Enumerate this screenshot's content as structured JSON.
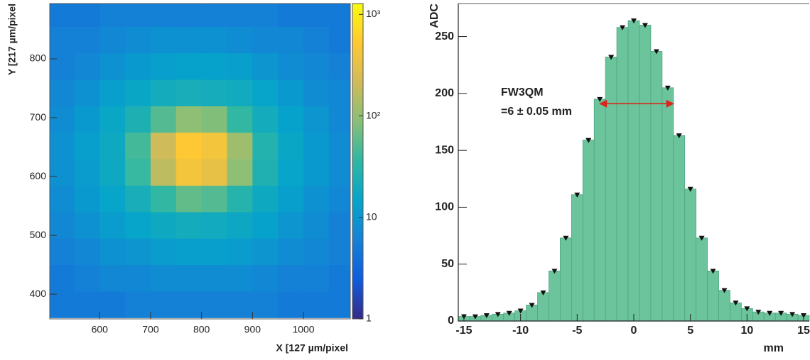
{
  "chart_data": [
    {
      "type": "heatmap",
      "xlabel": "X [127 µm/pixel",
      "ylabel": "Y [217 µm/pixel",
      "xbins": [
        500,
        550,
        600,
        650,
        700,
        750,
        800,
        850,
        900,
        950,
        1000,
        1050,
        1100
      ],
      "ybins": [
        360,
        405,
        450,
        495,
        540,
        585,
        630,
        675,
        720,
        765,
        810,
        855,
        900
      ],
      "z": [
        [
          5,
          5,
          5,
          6,
          6,
          6,
          6,
          6,
          6,
          5,
          5,
          5
        ],
        [
          5,
          6,
          7,
          7,
          8,
          8,
          8,
          8,
          7,
          6,
          6,
          5
        ],
        [
          6,
          7,
          9,
          10,
          12,
          13,
          13,
          12,
          10,
          8,
          7,
          6
        ],
        [
          7,
          9,
          12,
          15,
          18,
          20,
          19,
          17,
          14,
          10,
          8,
          6
        ],
        [
          8,
          11,
          15,
          22,
          37,
          60,
          52,
          30,
          18,
          13,
          9,
          7
        ],
        [
          9,
          12,
          18,
          39,
          170,
          412,
          329,
          95,
          26,
          15,
          11,
          8
        ],
        [
          9,
          13,
          18,
          44,
          210,
          517,
          412,
          115,
          28,
          16,
          11,
          8
        ],
        [
          8,
          11,
          16,
          25,
          52,
          96,
          82,
          37,
          20,
          14,
          10,
          7
        ],
        [
          7,
          9,
          13,
          16,
          20,
          22,
          21,
          19,
          15,
          11,
          8,
          7
        ],
        [
          6,
          7,
          9,
          11,
          13,
          14,
          14,
          13,
          10,
          8,
          7,
          6
        ],
        [
          6,
          6,
          7,
          8,
          9,
          9,
          9,
          8,
          7,
          7,
          6,
          5
        ],
        [
          5,
          5,
          6,
          6,
          6,
          6,
          6,
          6,
          6,
          5,
          5,
          5
        ]
      ],
      "xlim": [
        502,
        1092
      ],
      "ylim": [
        358,
        894
      ],
      "xticks": [
        600,
        700,
        800,
        900,
        1000
      ],
      "yticks": [
        400,
        500,
        600,
        700,
        800
      ],
      "zlim": [
        1,
        1280
      ],
      "zlog": true,
      "zticks": [
        1,
        10,
        {
          "value": 100,
          "label": "10²"
        },
        {
          "value": 1000,
          "label": "10³"
        }
      ],
      "colormap": [
        "#352a87",
        "#0f5cdd",
        "#1481d6",
        "#06a4ca",
        "#2eb7a4",
        "#87bf77",
        "#d1bb59",
        "#fec832",
        "#f9fb0e"
      ]
    },
    {
      "type": "histogram",
      "ylabel": "ADC",
      "xlabel": "mm",
      "bins": [
        -15.5,
        -14.5,
        -13.5,
        -12.5,
        -11.5,
        -10.5,
        -9.5,
        -8.5,
        -7.5,
        -6.5,
        -5.5,
        -4.5,
        -3.5,
        -2.5,
        -1.5,
        -0.5,
        0.5,
        1.5,
        2.5,
        3.5,
        4.5,
        5.5,
        6.5,
        7.5,
        8.5,
        9.5,
        10.5,
        11.5,
        12.5,
        13.5,
        14.5,
        15.5
      ],
      "values": [
        4,
        4,
        5,
        6,
        7,
        9,
        14,
        25,
        44,
        73,
        111,
        159,
        195,
        232,
        258,
        264,
        260,
        237,
        205,
        163,
        116,
        73,
        44,
        27,
        16,
        11,
        8,
        7,
        7,
        6,
        5
      ],
      "color": "#6cc49c",
      "marker_color": "#111111",
      "xlim": [
        -15.5,
        15.5
      ],
      "ylim": [
        0,
        279
      ],
      "xticks": [
        -15,
        -10,
        -5,
        0,
        5,
        10,
        15
      ],
      "yticks": [
        0,
        50,
        100,
        150,
        200,
        250
      ],
      "annotations": [
        "FW3QM",
        "=6 ± 0.05 mm"
      ],
      "arrow": {
        "x": [
          -3,
          3.5
        ],
        "y": 191,
        "color": "#d9261c"
      }
    }
  ]
}
